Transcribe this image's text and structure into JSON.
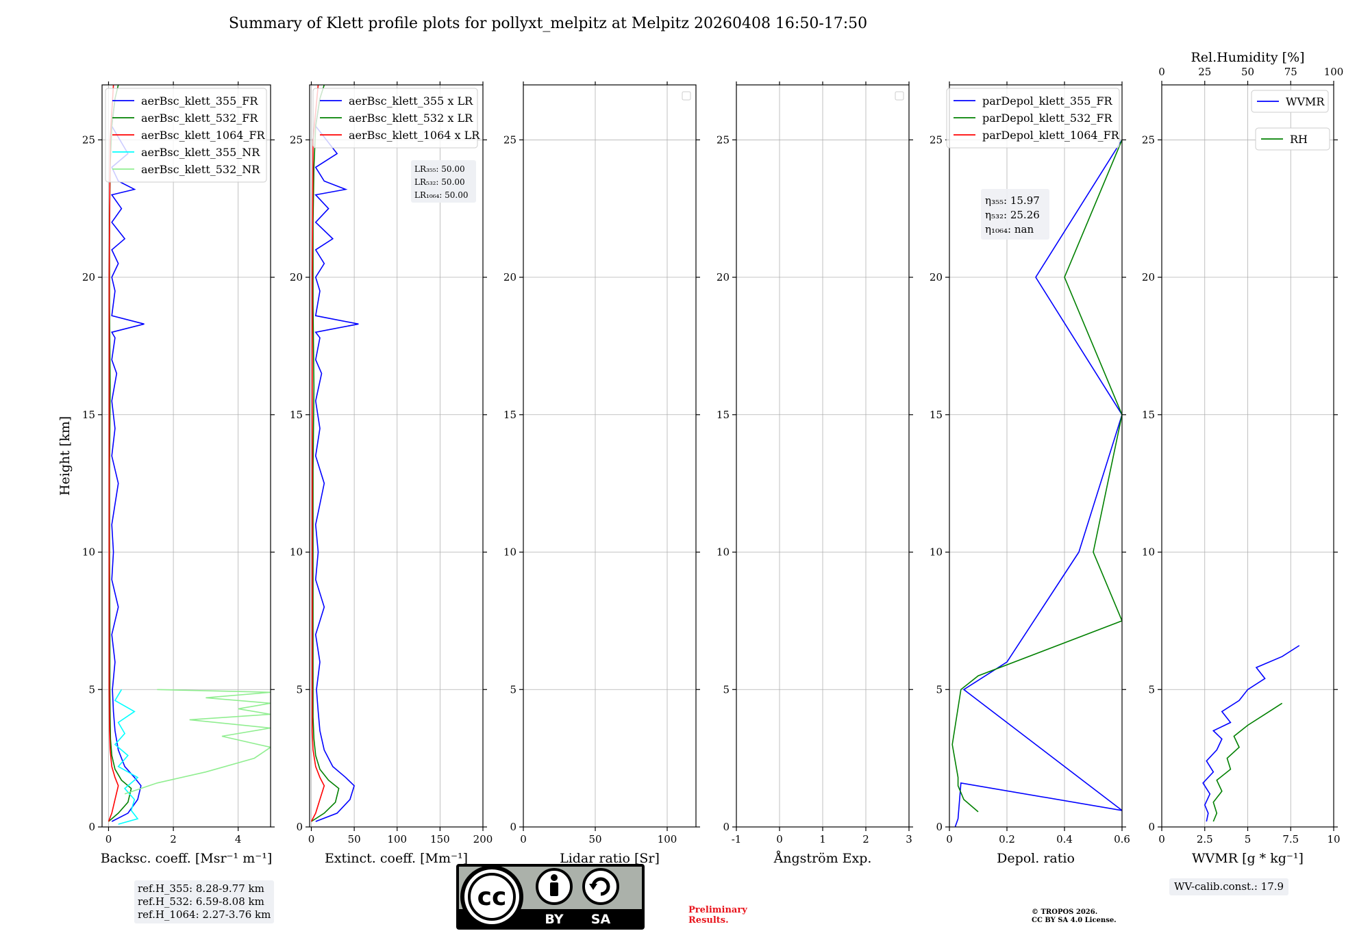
{
  "title": "Summary of Klett profile plots for pollyxt_melpitz at Melpitz 20260408 16:50-17:50",
  "colors": {
    "c355": "#0000ff",
    "c532": "#008000",
    "c1064": "#ff0000",
    "c355nr": "#00ffff",
    "c532nr": "#90ee90",
    "grid": "#b0b0b0"
  },
  "height_axis": {
    "label": "Height [km]",
    "ylim": [
      0,
      27
    ],
    "ticks": [
      0,
      5,
      10,
      15,
      20,
      25
    ]
  },
  "chart_data": [
    {
      "id": "bsc",
      "type": "line",
      "xlabel": "Backsc. coeff. [Msr⁻¹ m⁻¹]",
      "xlim": [
        -0.2,
        5
      ],
      "xticks": [
        0,
        2,
        4
      ],
      "ylabel": "Height [km]",
      "ylim": [
        0,
        27
      ],
      "legend": [
        "aerBsc_klett_355_FR",
        "aerBsc_klett_532_FR",
        "aerBsc_klett_1064_FR",
        "aerBsc_klett_355_NR",
        "aerBsc_klett_532_NR"
      ],
      "series": [
        {
          "name": "aerBsc_klett_355_FR",
          "color": "c355",
          "x": [
            0.1,
            0.6,
            0.9,
            1.0,
            0.8,
            0.5,
            0.3,
            0.2,
            0.15,
            0.12,
            0.2,
            0.1,
            0.3,
            0.1,
            0.15,
            0.1,
            0.3,
            0.1,
            0.2,
            0.1,
            0.25,
            0.1,
            0.2,
            0.1,
            1.1,
            0.1,
            0.2,
            0.1,
            0.3,
            0.1,
            0.5,
            0.1,
            0.4,
            0.1,
            0.8,
            0.3,
            0.1,
            0.6,
            0.1,
            0.2
          ],
          "y": [
            0.2,
            0.5,
            1.0,
            1.5,
            1.8,
            2.2,
            2.8,
            3.5,
            4.2,
            5.0,
            6.0,
            7.0,
            8.0,
            9.0,
            10.0,
            11.0,
            12.5,
            13.5,
            14.5,
            15.5,
            16.5,
            17.0,
            17.8,
            18.0,
            18.3,
            18.6,
            19.5,
            20.0,
            20.5,
            21.0,
            21.4,
            22.0,
            22.5,
            23.0,
            23.2,
            23.5,
            24.0,
            24.5,
            25.5,
            26.5
          ]
        },
        {
          "name": "aerBsc_klett_532_FR",
          "color": "c532",
          "x": [
            0.0,
            0.3,
            0.6,
            0.7,
            0.4,
            0.2,
            0.1,
            0.06,
            0.05,
            0.04,
            0.04,
            0.03,
            0.03,
            0.05,
            0.03,
            0.03,
            0.05,
            0.1,
            0.2,
            0.3
          ],
          "y": [
            0.2,
            0.5,
            0.9,
            1.4,
            1.7,
            2.1,
            2.6,
            3.2,
            4.0,
            5.0,
            7.0,
            10.0,
            13.0,
            16.0,
            19.0,
            22.0,
            24.0,
            25.5,
            26.5,
            27.0
          ]
        },
        {
          "name": "aerBsc_klett_1064_FR",
          "color": "c1064",
          "x": [
            0.0,
            0.1,
            0.2,
            0.3,
            0.2,
            0.1,
            0.05,
            0.03,
            0.02,
            0.02,
            0.02,
            0.02,
            0.05,
            0.15
          ],
          "y": [
            0.2,
            0.5,
            1.0,
            1.5,
            1.8,
            2.2,
            2.8,
            3.5,
            5.0,
            10.0,
            15.0,
            20.0,
            25.0,
            27.0
          ]
        },
        {
          "name": "aerBsc_klett_355_NR",
          "color": "c355nr",
          "x": [
            0.3,
            0.9,
            0.7,
            0.8,
            0.5,
            0.9,
            0.3,
            0.6,
            0.2,
            0.5,
            0.3,
            0.8,
            0.2,
            0.4
          ],
          "y": [
            0.1,
            0.3,
            0.6,
            1.0,
            1.4,
            1.8,
            2.2,
            2.6,
            3.0,
            3.4,
            3.8,
            4.2,
            4.6,
            5.0
          ]
        },
        {
          "name": "aerBsc_klett_532_NR",
          "color": "c532nr",
          "x": [
            0.5,
            1.5,
            3.0,
            4.5,
            5.0,
            3.5,
            5.0,
            2.5,
            5.0,
            4.0,
            5.0,
            3.0,
            5.0,
            1.5
          ],
          "y": [
            1.2,
            1.6,
            2.0,
            2.5,
            2.9,
            3.3,
            3.6,
            3.9,
            4.1,
            4.3,
            4.5,
            4.7,
            4.9,
            5.0
          ]
        }
      ]
    },
    {
      "id": "ext",
      "type": "line",
      "xlabel": "Extinct. coeff. [Mm⁻¹]",
      "xlim": [
        -2,
        200
      ],
      "xticks": [
        0,
        50,
        100,
        150,
        200
      ],
      "ylim": [
        0,
        27
      ],
      "legend": [
        "aerBsc_klett_355 x LR",
        "aerBsc_klett_532 x LR",
        "aerBsc_klett_1064 x LR"
      ],
      "annotations": [
        "LR₃₅₅: 50.00",
        "LR₅₃₂: 50.00",
        "LR₁₀₆₄: 50.00"
      ],
      "series": [
        {
          "name": "aerBsc_klett_355 x LR",
          "color": "c355",
          "x": [
            5,
            30,
            45,
            50,
            40,
            25,
            15,
            10,
            8,
            6,
            10,
            5,
            15,
            5,
            8,
            5,
            15,
            5,
            10,
            5,
            12,
            5,
            10,
            5,
            55,
            5,
            10,
            5,
            15,
            5,
            25,
            5,
            20,
            5,
            40,
            15,
            5,
            30,
            5,
            10
          ],
          "y": [
            0.2,
            0.5,
            1.0,
            1.5,
            1.8,
            2.2,
            2.8,
            3.5,
            4.2,
            5.0,
            6.0,
            7.0,
            8.0,
            9.0,
            10.0,
            11.0,
            12.5,
            13.5,
            14.5,
            15.5,
            16.5,
            17.0,
            17.8,
            18.0,
            18.3,
            18.6,
            19.5,
            20.0,
            20.5,
            21.0,
            21.4,
            22.0,
            22.5,
            23.0,
            23.2,
            23.5,
            24.0,
            24.5,
            25.5,
            26.5
          ]
        },
        {
          "name": "aerBsc_klett_532 x LR",
          "color": "c532",
          "x": [
            0,
            15,
            28,
            32,
            20,
            10,
            5,
            3,
            2,
            2,
            2,
            2,
            2,
            3,
            2,
            2,
            3,
            5,
            10,
            15
          ],
          "y": [
            0.2,
            0.5,
            0.9,
            1.4,
            1.7,
            2.1,
            2.6,
            3.2,
            4.0,
            5.0,
            7.0,
            10.0,
            13.0,
            16.0,
            19.0,
            22.0,
            24.0,
            25.5,
            26.5,
            27.0
          ]
        },
        {
          "name": "aerBsc_klett_1064 x LR",
          "color": "c1064",
          "x": [
            0,
            5,
            10,
            15,
            10,
            5,
            2,
            1,
            1,
            1,
            1,
            1,
            2,
            8
          ],
          "y": [
            0.2,
            0.5,
            1.0,
            1.5,
            1.8,
            2.2,
            2.8,
            3.5,
            5.0,
            10.0,
            15.0,
            20.0,
            25.0,
            27.0
          ]
        }
      ]
    },
    {
      "id": "lr",
      "type": "line",
      "xlabel": "Lidar ratio [Sr]",
      "xlim": [
        0,
        120
      ],
      "xticks": [
        0,
        50,
        100
      ],
      "ylim": [
        0,
        27
      ],
      "series": []
    },
    {
      "id": "ang",
      "type": "line",
      "xlabel": "Ångström Exp.",
      "xlim": [
        -1,
        3
      ],
      "xticks": [
        -1,
        0,
        1,
        2,
        3
      ],
      "ylim": [
        0,
        27
      ],
      "series": []
    },
    {
      "id": "depol",
      "type": "line",
      "xlabel": "Depol. ratio",
      "xlim": [
        0,
        0.6
      ],
      "xticks": [
        0.0,
        0.2,
        0.4,
        0.6
      ],
      "ylim": [
        0,
        27
      ],
      "legend": [
        "parDepol_klett_355_FR",
        "parDepol_klett_532_FR",
        "parDepol_klett_1064_FR"
      ],
      "annotations": [
        "η₃₅₅: 15.97",
        "η₅₃₂: 25.26",
        "η₁₀₆₄: nan"
      ],
      "series": [
        {
          "name": "parDepol_klett_355_FR",
          "color": "c355",
          "x": [
            0.02,
            0.03,
            0.04,
            0.6,
            0.05,
            0.2,
            0.45,
            0.6,
            0.3,
            0.6
          ],
          "y": [
            0.0,
            0.3,
            1.6,
            0.6,
            5.0,
            6.0,
            10.0,
            15.0,
            20.0,
            25.0
          ]
        },
        {
          "name": "parDepol_klett_532_FR",
          "color": "c532",
          "x": [
            0.1,
            0.05,
            0.03,
            0.03,
            0.01,
            0.04,
            0.1,
            0.6,
            0.5,
            0.6,
            0.4,
            0.6
          ],
          "y": [
            0.55,
            1.0,
            1.5,
            1.8,
            3.0,
            5.0,
            5.5,
            7.5,
            10.0,
            15.0,
            20.0,
            25.0
          ]
        }
      ]
    },
    {
      "id": "wv",
      "type": "line",
      "xlabel": "WVMR [g * kg⁻¹]",
      "xlim": [
        0,
        10
      ],
      "xticks": [
        0.0,
        2.5,
        5.0,
        7.5,
        10.0
      ],
      "top_label": "Rel.Humidity [%]",
      "top_xlim": [
        0,
        100
      ],
      "top_ticks": [
        0,
        25,
        50,
        75,
        100
      ],
      "ylim": [
        0,
        27
      ],
      "legend": [
        "WVMR",
        "RH"
      ],
      "annotations": [
        "WV-calib.const.: 17.9"
      ],
      "series": [
        {
          "name": "WVMR",
          "color": "c355",
          "x": [
            2.6,
            2.7,
            2.5,
            2.8,
            2.4,
            3.0,
            2.6,
            3.2,
            3.5,
            3.0,
            4.0,
            3.5,
            4.5,
            5.0,
            6.0,
            5.5,
            7.0,
            8.0
          ],
          "y": [
            0.2,
            0.5,
            0.8,
            1.2,
            1.6,
            2.0,
            2.4,
            2.8,
            3.2,
            3.5,
            3.8,
            4.2,
            4.6,
            5.0,
            5.4,
            5.8,
            6.2,
            6.6
          ]
        },
        {
          "name": "RH",
          "color": "c532",
          "x": [
            3.0,
            3.2,
            3.0,
            3.5,
            3.2,
            4.0,
            3.8,
            4.5,
            4.2,
            5.0,
            6.0,
            7.0
          ],
          "y": [
            0.2,
            0.5,
            0.9,
            1.3,
            1.7,
            2.1,
            2.5,
            2.9,
            3.3,
            3.7,
            4.1,
            4.5
          ]
        }
      ]
    }
  ],
  "ref_heights": [
    "ref.H_355: 8.28-9.77 km",
    "ref.H_532: 6.59-8.08 km",
    "ref.H_1064: 2.27-3.76 km"
  ],
  "preliminary": [
    "Preliminary",
    "Results."
  ],
  "copyright": [
    "© TROPOS 2026.",
    "CC BY SA 4.0 License."
  ],
  "cc_badge": {
    "cc": "cc",
    "by": "BY",
    "sa": "SA"
  }
}
